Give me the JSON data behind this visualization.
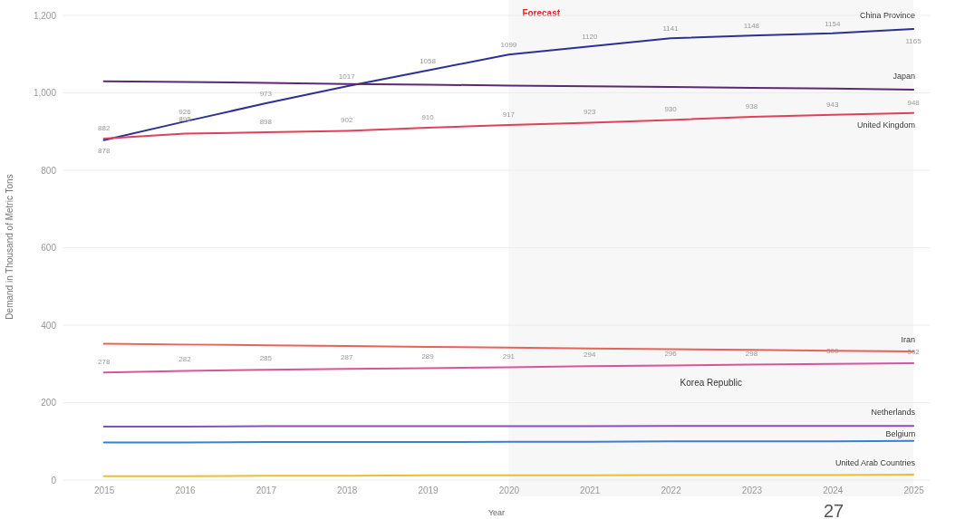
{
  "chart_data": {
    "type": "line",
    "xlabel": "Year",
    "ylabel": "Demand in Thousand of Metric Tons",
    "x": [
      2015,
      2016,
      2017,
      2018,
      2019,
      2020,
      2021,
      2022,
      2023,
      2024,
      2025
    ],
    "xlim": [
      2014.5,
      2025.2
    ],
    "xticks": [
      2015,
      2016,
      2017,
      2018,
      2019,
      2020,
      2021,
      2022,
      2023,
      2024,
      2025
    ],
    "ylim": [
      0,
      1200
    ],
    "yticks": [
      {
        "value": 0,
        "label": "0"
      },
      {
        "value": 200,
        "label": "200"
      },
      {
        "value": 400,
        "label": "400"
      },
      {
        "value": 600,
        "label": "600"
      },
      {
        "value": 800,
        "label": "800"
      },
      {
        "value": 1000,
        "label": "1,000"
      },
      {
        "value": 1200,
        "label": "1,200"
      }
    ],
    "grid": "y",
    "marker": "none",
    "line_style": "solid",
    "bands": [
      {
        "axis": "x",
        "from": 2020,
        "to": 2025,
        "label": "Forecast",
        "color": "#f7f7f7"
      }
    ],
    "series": [
      {
        "name": "China Province",
        "color": "#2e3192",
        "values": [
          878,
          926,
          973,
          1017,
          1058,
          1099,
          1120,
          1141,
          1148,
          1154,
          1165
        ],
        "value_labels": [
          "878",
          "926",
          "973",
          "1017",
          "1058",
          "1099",
          "1120",
          "1141",
          "1148",
          "1154",
          "1165"
        ]
      },
      {
        "name": "Japan",
        "color": "#5c2a70",
        "values": [
          1030,
          1028,
          1026,
          1023,
          1021,
          1019,
          1017,
          1015,
          1013,
          1011,
          1008
        ]
      },
      {
        "name": "United Kingdom",
        "color": "#e0405a",
        "values": [
          882,
          895,
          898,
          902,
          910,
          917,
          923,
          930,
          938,
          943,
          948
        ],
        "value_labels": [
          "882",
          "895",
          "898",
          "902",
          "910",
          "917",
          "923",
          "930",
          "938",
          "943",
          "948"
        ]
      },
      {
        "name": "Iran",
        "color": "#e8625a",
        "values": [
          352,
          350,
          348,
          346,
          344,
          342,
          340,
          338,
          336,
          334,
          332
        ]
      },
      {
        "name": "Korea Republic",
        "color": "#d8559a",
        "values": [
          278,
          282,
          285,
          287,
          289,
          291,
          294,
          296,
          298,
          300,
          302
        ],
        "value_labels": [
          "278",
          "282",
          "285",
          "287",
          "289",
          "291",
          "294",
          "296",
          "298",
          "300",
          "302"
        ]
      },
      {
        "name": "Netherlands",
        "color": "#8a4fbf",
        "values": [
          138,
          138,
          139,
          139,
          139,
          139,
          139,
          140,
          140,
          140,
          140
        ]
      },
      {
        "name": "Belgium",
        "color": "#3a80d0",
        "values": [
          97,
          97,
          98,
          98,
          98,
          99,
          99,
          100,
          100,
          100,
          101
        ]
      },
      {
        "name": "United Arab Countries",
        "color": "#e8c030",
        "values": [
          10,
          10,
          11,
          11,
          12,
          12,
          12,
          13,
          13,
          13,
          14
        ]
      }
    ],
    "annotations": [
      "27"
    ]
  }
}
